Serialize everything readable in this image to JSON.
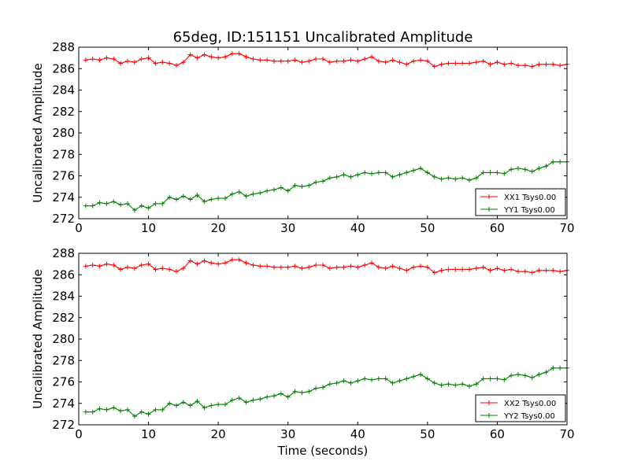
{
  "chart_data": [
    {
      "type": "line",
      "title": "65deg, ID:151151 Uncalibrated Amplitude",
      "xlabel": "",
      "ylabel": "Uncalibrated Amplitude",
      "xlim": [
        0,
        70
      ],
      "ylim": [
        272,
        288
      ],
      "xticks": [
        0,
        10,
        20,
        30,
        40,
        50,
        60,
        70
      ],
      "yticks": [
        272,
        274,
        276,
        278,
        280,
        282,
        284,
        286,
        288
      ],
      "grid": false,
      "legend_placement": "lower-right",
      "x": [
        1,
        2,
        3,
        4,
        5,
        6,
        7,
        8,
        9,
        10,
        11,
        12,
        13,
        14,
        15,
        16,
        17,
        18,
        19,
        20,
        21,
        22,
        23,
        24,
        25,
        26,
        27,
        28,
        29,
        30,
        31,
        32,
        33,
        34,
        35,
        36,
        37,
        38,
        39,
        40,
        41,
        42,
        43,
        44,
        45,
        46,
        47,
        48,
        49,
        50,
        51,
        52,
        53,
        54,
        55,
        56,
        57,
        58,
        59,
        60,
        61,
        62,
        63,
        64,
        65,
        66,
        67,
        68,
        69,
        70
      ],
      "series": [
        {
          "name": "XX1 Tsys0.00",
          "color": "#ff0000",
          "values": [
            286.8,
            286.9,
            286.8,
            287.0,
            286.9,
            286.5,
            286.7,
            286.6,
            286.9,
            287.0,
            286.5,
            286.6,
            286.5,
            286.3,
            286.6,
            287.3,
            287.0,
            287.3,
            287.1,
            287.0,
            287.1,
            287.4,
            287.4,
            287.1,
            286.9,
            286.8,
            286.8,
            286.7,
            286.7,
            286.7,
            286.8,
            286.6,
            286.7,
            286.9,
            286.9,
            286.6,
            286.7,
            286.7,
            286.8,
            286.7,
            286.9,
            287.1,
            286.7,
            286.6,
            286.8,
            286.6,
            286.4,
            286.7,
            286.8,
            286.7,
            286.2,
            286.4,
            286.5,
            286.5,
            286.5,
            286.5,
            286.6,
            286.7,
            286.4,
            286.6,
            286.4,
            286.5,
            286.3,
            286.3,
            286.2,
            286.4,
            286.4,
            286.4,
            286.3,
            286.4
          ]
        },
        {
          "name": "YY1 Tsys0.00",
          "color": "#008000",
          "values": [
            273.2,
            273.2,
            273.5,
            273.4,
            273.6,
            273.3,
            273.4,
            272.8,
            273.2,
            273.0,
            273.4,
            273.4,
            274.0,
            273.8,
            274.1,
            273.8,
            274.2,
            273.6,
            273.8,
            273.9,
            273.9,
            274.3,
            274.5,
            274.1,
            274.3,
            274.4,
            274.6,
            274.7,
            274.9,
            274.6,
            275.1,
            275.0,
            275.1,
            275.4,
            275.5,
            275.8,
            275.9,
            276.1,
            275.9,
            276.1,
            276.3,
            276.2,
            276.3,
            276.3,
            275.9,
            276.1,
            276.3,
            276.5,
            276.7,
            276.3,
            275.9,
            275.7,
            275.8,
            275.7,
            275.8,
            275.6,
            275.8,
            276.3,
            276.3,
            276.3,
            276.2,
            276.6,
            276.7,
            276.6,
            276.4,
            276.7,
            276.9,
            277.3,
            277.3,
            277.3
          ]
        }
      ]
    },
    {
      "type": "line",
      "title": "",
      "xlabel": "Time (seconds)",
      "ylabel": "Uncalibrated Amplitude",
      "xlim": [
        0,
        70
      ],
      "ylim": [
        272,
        288
      ],
      "xticks": [
        0,
        10,
        20,
        30,
        40,
        50,
        60,
        70
      ],
      "yticks": [
        272,
        274,
        276,
        278,
        280,
        282,
        284,
        286,
        288
      ],
      "grid": false,
      "legend_placement": "lower-right",
      "x": [
        1,
        2,
        3,
        4,
        5,
        6,
        7,
        8,
        9,
        10,
        11,
        12,
        13,
        14,
        15,
        16,
        17,
        18,
        19,
        20,
        21,
        22,
        23,
        24,
        25,
        26,
        27,
        28,
        29,
        30,
        31,
        32,
        33,
        34,
        35,
        36,
        37,
        38,
        39,
        40,
        41,
        42,
        43,
        44,
        45,
        46,
        47,
        48,
        49,
        50,
        51,
        52,
        53,
        54,
        55,
        56,
        57,
        58,
        59,
        60,
        61,
        62,
        63,
        64,
        65,
        66,
        67,
        68,
        69,
        70
      ],
      "series": [
        {
          "name": "XX2 Tsys0.00",
          "color": "#ff0000",
          "values": [
            286.8,
            286.9,
            286.8,
            287.0,
            286.9,
            286.5,
            286.7,
            286.6,
            286.9,
            287.0,
            286.5,
            286.6,
            286.5,
            286.3,
            286.6,
            287.3,
            287.0,
            287.3,
            287.1,
            287.0,
            287.1,
            287.4,
            287.4,
            287.1,
            286.9,
            286.8,
            286.8,
            286.7,
            286.7,
            286.7,
            286.8,
            286.6,
            286.7,
            286.9,
            286.9,
            286.6,
            286.7,
            286.7,
            286.8,
            286.7,
            286.9,
            287.1,
            286.7,
            286.6,
            286.8,
            286.6,
            286.4,
            286.7,
            286.8,
            286.7,
            286.2,
            286.4,
            286.5,
            286.5,
            286.5,
            286.5,
            286.6,
            286.7,
            286.4,
            286.6,
            286.4,
            286.5,
            286.3,
            286.3,
            286.2,
            286.4,
            286.4,
            286.4,
            286.3,
            286.4
          ]
        },
        {
          "name": "YY2 Tsys0.00",
          "color": "#008000",
          "values": [
            273.2,
            273.2,
            273.5,
            273.4,
            273.6,
            273.3,
            273.4,
            272.8,
            273.2,
            273.0,
            273.4,
            273.4,
            274.0,
            273.8,
            274.1,
            273.8,
            274.2,
            273.6,
            273.8,
            273.9,
            273.9,
            274.3,
            274.5,
            274.1,
            274.3,
            274.4,
            274.6,
            274.7,
            274.9,
            274.6,
            275.1,
            275.0,
            275.1,
            275.4,
            275.5,
            275.8,
            275.9,
            276.1,
            275.9,
            276.1,
            276.3,
            276.2,
            276.3,
            276.3,
            275.9,
            276.1,
            276.3,
            276.5,
            276.7,
            276.3,
            275.9,
            275.7,
            275.8,
            275.7,
            275.8,
            275.6,
            275.8,
            276.3,
            276.3,
            276.3,
            276.2,
            276.6,
            276.7,
            276.6,
            276.4,
            276.7,
            276.9,
            277.3,
            277.3,
            277.3
          ]
        }
      ]
    }
  ]
}
